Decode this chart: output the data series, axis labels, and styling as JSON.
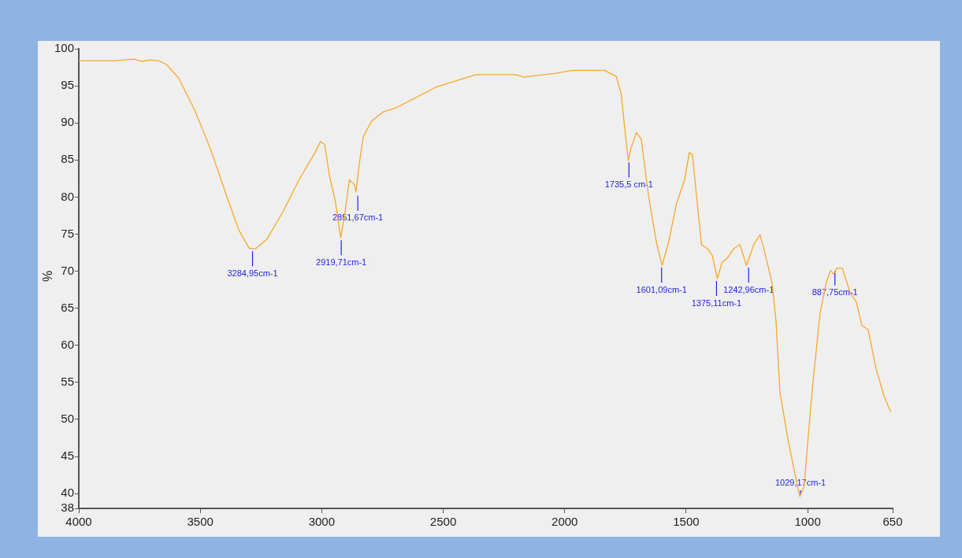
{
  "chart_data": {
    "type": "line",
    "ylabel": "%",
    "x": [
      4000,
      3854,
      3772,
      3739,
      3706,
      3673,
      3640,
      3590,
      3524,
      3458,
      3392,
      3342,
      3299,
      3273,
      3226,
      3160,
      3094,
      3028,
      3005,
      2988,
      2968,
      2945,
      2922,
      2905,
      2886,
      2866,
      2859,
      2846,
      2829,
      2796,
      2747,
      2697,
      2532,
      2366,
      2201,
      2168,
      2036,
      1969,
      1837,
      1788,
      1768,
      1751,
      1738,
      1728,
      1705,
      1685,
      1655,
      1622,
      1599,
      1573,
      1540,
      1507,
      1487,
      1474,
      1454,
      1437,
      1411,
      1392,
      1372,
      1352,
      1332,
      1305,
      1279,
      1252,
      1219,
      1196,
      1180,
      1147,
      1130,
      1114,
      1081,
      1048,
      1032,
      1015,
      982,
      949,
      923,
      906,
      893,
      880,
      857,
      824,
      800,
      777,
      751,
      718,
      685,
      658
    ],
    "series": [
      {
        "color": "#f7a828",
        "values": [
          98.4,
          98.4,
          98.6,
          98.3,
          98.5,
          98.4,
          97.9,
          96.1,
          91.8,
          86.5,
          80.2,
          75.6,
          73.1,
          73.0,
          74.3,
          78.0,
          82.3,
          86.0,
          87.5,
          87.1,
          82.8,
          79.6,
          74.5,
          77.8,
          82.3,
          81.7,
          80.7,
          84.4,
          88.1,
          90.2,
          91.5,
          92.0,
          94.8,
          96.5,
          96.5,
          96.2,
          96.7,
          97.1,
          97.1,
          96.3,
          94.0,
          88.7,
          84.9,
          86.5,
          88.7,
          87.8,
          80.2,
          73.8,
          70.8,
          73.8,
          79.1,
          82.3,
          86.0,
          85.7,
          79.1,
          73.6,
          73.0,
          72.1,
          69.0,
          71.2,
          71.7,
          73.0,
          73.6,
          70.8,
          73.8,
          74.9,
          73.0,
          68.5,
          63.2,
          53.7,
          47.3,
          42.0,
          39.6,
          40.9,
          53.7,
          64.3,
          68.5,
          70.1,
          69.6,
          70.4,
          70.4,
          67.0,
          65.9,
          62.7,
          62.1,
          56.8,
          53.1,
          51.0
        ]
      }
    ],
    "xlim": [
      4000,
      650
    ],
    "xticks": [
      4000,
      3500,
      3000,
      2500,
      2000,
      1500,
      1000,
      650
    ],
    "ylim": [
      38,
      100
    ],
    "yticks": [
      38,
      40,
      45,
      50,
      55,
      60,
      65,
      70,
      75,
      80,
      85,
      90,
      95,
      100
    ],
    "grid": false,
    "legend": false,
    "marker": "none",
    "line_style": "solid",
    "annotations": [
      {
        "text": "3284,95cm-1",
        "x": 3284.95,
        "y": 73.0
      },
      {
        "text": "2919,71cm-1",
        "x": 2919.71,
        "y": 74.5
      },
      {
        "text": "2851,67cm-1",
        "x": 2851.67,
        "y": 80.5
      },
      {
        "text": "1735,5 cm-1",
        "x": 1735.5,
        "y": 85.0
      },
      {
        "text": "1601,09cm-1",
        "x": 1601.09,
        "y": 70.8
      },
      {
        "text": "1375,11cm-1",
        "x": 1375.11,
        "y": 69.0
      },
      {
        "text": "1242,96cm-1",
        "x": 1242.96,
        "y": 70.8
      },
      {
        "text": "1029,17cm-1",
        "x": 1029.17,
        "y": 39.6
      },
      {
        "text": "887,75cm-1",
        "x": 887.75,
        "y": 70.4
      }
    ]
  }
}
